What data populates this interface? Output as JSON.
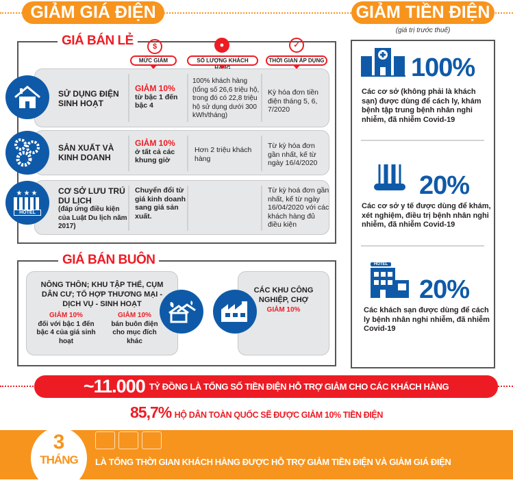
{
  "header": {
    "left_title": "GIẢM GIÁ ĐIỆN",
    "right_title": "GIẢM TIỀN ĐIỆN",
    "right_subtitle": "(giá trị trước thuế)"
  },
  "retail": {
    "title": "GIÁ BÁN LẺ",
    "columns": [
      "MỨC GIẢM",
      "SỐ LƯỢNG KHÁCH HÀNG",
      "THỜI GIAN ÁP DỤNG"
    ],
    "rows": [
      {
        "icon": "house-icon",
        "category": "SỬ DỤNG ĐIỆN SINH HOẠT",
        "category_note": "",
        "discount_highlight": "GIẢM 10%",
        "discount_text": "từ bậc 1 đến bậc 4",
        "customers": "100% khách hàng (tổng số 26,6 triệu hộ, trong đó có 22,8 triệu hộ sử dụng dưới 300 kWh/tháng)",
        "period": "Kỳ hóa đơn tiền điện tháng 5, 6, 7/2020"
      },
      {
        "icon": "gears-icon",
        "category": "SẢN XUẤT VÀ KINH DOANH",
        "category_note": "",
        "discount_highlight": "GIẢM 10%",
        "discount_text": "ở tất cả các khung giờ",
        "customers": "Hơn 2 triệu khách hàng",
        "period": "Từ kỳ hóa đơn gần nhất, kế từ ngày 16/4/2020"
      },
      {
        "icon": "hotel-icon",
        "category": "CƠ SỞ LƯU TRÚ DU LỊCH",
        "category_note": "(đáp ứng điều kiện của Luật Du lịch năm 2017)",
        "discount_highlight": "",
        "discount_text": "Chuyển đổi từ giá kinh doanh sang giá sản xuất.",
        "customers": "",
        "period": "Từ kỳ hoá đơn gần nhất, kế từ ngày 16/04/2020 với các khách hàng đủ điều kiện"
      }
    ],
    "hotel_sign": "HOTEL"
  },
  "wholesale": {
    "title": "GIÁ BÁN BUÔN",
    "left": {
      "category": "NÔNG THÔN; KHU TẬP THỂ, CỤM DÂN CƯ; TỔ HỢP THƯƠNG MẠI - DỊCH VỤ - SINH HOẠT",
      "items": [
        {
          "highlight": "GIẢM 10%",
          "text": "đối với bậc 1 đến bậc 4 của giá sinh hoạt"
        },
        {
          "highlight": "GIẢM 10%",
          "text": "bán buôn điện cho mục đích khác"
        }
      ]
    },
    "right": {
      "category": "CÁC KHU CÔNG NGHIỆP, CHỢ",
      "highlight": "GIẢM 10%"
    }
  },
  "reductions": [
    {
      "icon": "hospital-icon",
      "percent": "100%",
      "text": "Các cơ sở (không phải là khách sạn) được dùng để cách ly, khám bệnh tập trung bệnh nhân nghi nhiễm, đã nhiễm Covid-19"
    },
    {
      "icon": "test-tubes-icon",
      "percent": "20%",
      "text": "Các cơ sở y tế được dùng để khám, xét nghiệm, điều trị bệnh nhân nghi nhiễm, đã nhiễm Covid-19"
    },
    {
      "icon": "hotel-building-icon",
      "percent": "20%",
      "text": "Các khách sạn được dùng để cách ly bệnh nhân nghi nhiễm, đã nhiễm Covid-19",
      "sign": "HOTEL"
    }
  ],
  "summary": {
    "total_amount": "~11.000",
    "total_text": "TỶ ĐỒNG LÀ TỔNG SỐ TIỀN ĐIỆN HỖ TRỢ GIẢM CHO CÁC KHÁCH HÀNG",
    "household_percent": "85,7%",
    "household_text": "HỘ DÂN TOÀN QUỐC SẼ ĐƯỢC GIẢM 10% TIỀN ĐIỆN",
    "duration_number": "3",
    "duration_unit": "THÁNG",
    "duration_text": "LÀ TỔNG THỜI GIAN KHÁCH HÀNG ĐƯỢC HỖ TRỢ GIẢM TIỀN ĐIỆN VÀ GIẢM GIÁ ĐIỆN"
  },
  "colors": {
    "orange": "#f7941d",
    "red": "#ed1c24",
    "blue": "#0f5aa8",
    "gray": "#e6e7e8"
  }
}
